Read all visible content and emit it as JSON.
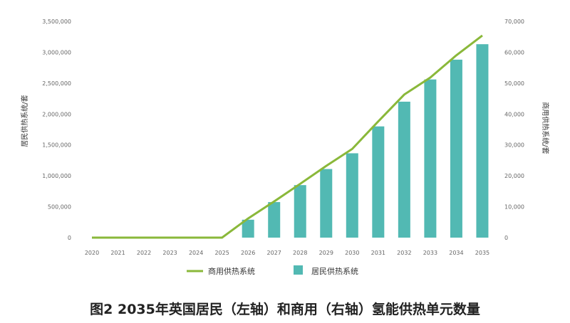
{
  "chart_data": {
    "type": "bar+line",
    "title": "图2 2035年英国居民（左轴）和商用（右轴）氢能供热单元数量",
    "ylabel_left": "居民供热系统/套",
    "ylabel_right": "商用供热系统/套",
    "ylim_left": [
      0,
      3500000
    ],
    "ylim_right": [
      0,
      70000
    ],
    "yticks_left": [
      "0",
      "500,000",
      "1,000,000",
      "1,500,000",
      "2,000,000",
      "2,500,000",
      "3,000,000",
      "3,500,000"
    ],
    "yticks_right": [
      "0",
      "10,000",
      "20,000",
      "30,000",
      "40,000",
      "50,000",
      "60,000",
      "70,000"
    ],
    "categories": [
      "2020",
      "2021",
      "2022",
      "2023",
      "2024",
      "2025",
      "2026",
      "2027",
      "2028",
      "2029",
      "2030",
      "2031",
      "2032",
      "2033",
      "2034",
      "2035"
    ],
    "legend_placement": "bottom",
    "grid": false,
    "series": [
      {
        "name": "商用供热系统",
        "type": "line",
        "axis": "right",
        "color": "#8ab83a",
        "values": [
          0,
          0,
          0,
          0,
          0,
          0,
          6200,
          11700,
          17400,
          23200,
          28700,
          37600,
          46300,
          51800,
          59000,
          65400
        ]
      },
      {
        "name": "居民供热系统",
        "type": "bar",
        "axis": "left",
        "color": "#52b9b3",
        "values": [
          0,
          0,
          0,
          0,
          0,
          0,
          290000,
          575000,
          850000,
          1110000,
          1365000,
          1800000,
          2200000,
          2560000,
          2880000,
          3130000
        ]
      }
    ]
  }
}
